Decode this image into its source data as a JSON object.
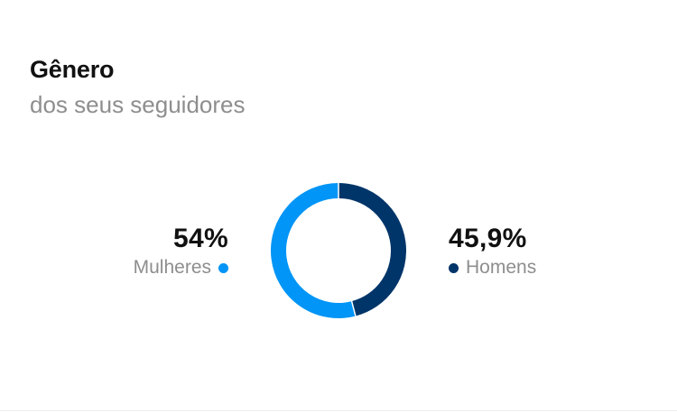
{
  "header": {
    "title": "Gênero",
    "subtitle": "dos seus seguidores"
  },
  "colors": {
    "women": "#0095f6",
    "men": "#003569"
  },
  "chart_data": {
    "type": "pie",
    "style": "donut",
    "series": [
      {
        "name": "Mulheres",
        "value": 54,
        "label": "54%",
        "color": "#0095f6"
      },
      {
        "name": "Homens",
        "value": 45.9,
        "label": "45,9%",
        "color": "#003569"
      }
    ],
    "title": "Gênero",
    "subtitle": "dos seus seguidores",
    "legend": "beside-donut"
  }
}
